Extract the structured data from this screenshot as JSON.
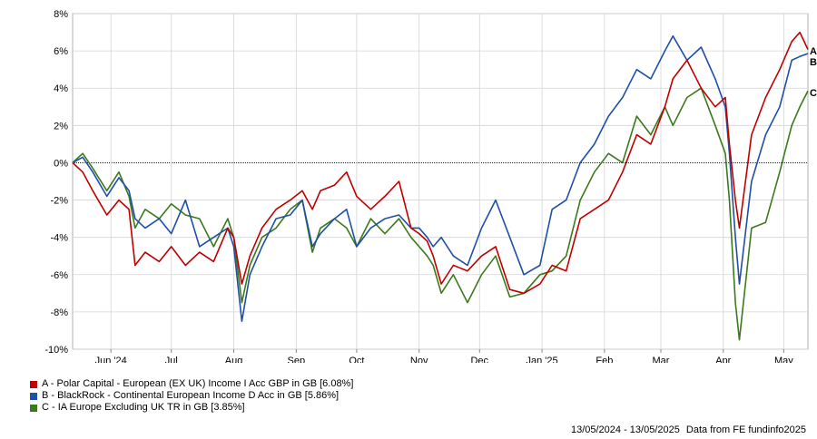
{
  "chart_data": {
    "type": "line",
    "title": "",
    "xlabel": "",
    "ylabel": "",
    "ylim": [
      -10,
      8
    ],
    "y_ticks": [
      "8%",
      "6%",
      "4%",
      "2%",
      "0%",
      "-2%",
      "-4%",
      "-6%",
      "-8%",
      "-10%"
    ],
    "x_ticks": [
      "Jun '24",
      "Jul",
      "Aug",
      "Sep",
      "Oct",
      "Nov",
      "Dec",
      "Jan '25",
      "Feb",
      "Mar",
      "Apr",
      "May"
    ],
    "x_range": [
      "2024-05-13",
      "2025-05-13"
    ],
    "grid": true,
    "zero_line": true,
    "series": [
      {
        "key": "A",
        "name": "A - Polar Capital - European (EX UK) Income I Acc GBP in GB [6.08%]",
        "color": "#c00000",
        "points": [
          [
            "2024-05-13",
            0.0
          ],
          [
            "2024-05-18",
            -0.5
          ],
          [
            "2024-05-23",
            -1.5
          ],
          [
            "2024-05-30",
            -2.8
          ],
          [
            "2024-06-05",
            -2.0
          ],
          [
            "2024-06-10",
            -2.5
          ],
          [
            "2024-06-13",
            -5.5
          ],
          [
            "2024-06-18",
            -4.8
          ],
          [
            "2024-06-25",
            -5.3
          ],
          [
            "2024-07-01",
            -4.5
          ],
          [
            "2024-07-08",
            -5.5
          ],
          [
            "2024-07-15",
            -4.8
          ],
          [
            "2024-07-22",
            -5.3
          ],
          [
            "2024-07-29",
            -3.5
          ],
          [
            "2024-08-01",
            -4.0
          ],
          [
            "2024-08-05",
            -6.5
          ],
          [
            "2024-08-09",
            -5.0
          ],
          [
            "2024-08-15",
            -3.5
          ],
          [
            "2024-08-22",
            -2.5
          ],
          [
            "2024-08-29",
            -2.0
          ],
          [
            "2024-09-04",
            -1.5
          ],
          [
            "2024-09-09",
            -2.5
          ],
          [
            "2024-09-13",
            -1.5
          ],
          [
            "2024-09-20",
            -1.2
          ],
          [
            "2024-09-26",
            -0.5
          ],
          [
            "2024-10-01",
            -1.8
          ],
          [
            "2024-10-08",
            -2.5
          ],
          [
            "2024-10-15",
            -1.8
          ],
          [
            "2024-10-22",
            -1.0
          ],
          [
            "2024-10-28",
            -3.5
          ],
          [
            "2024-11-01",
            -3.8
          ],
          [
            "2024-11-05",
            -4.2
          ],
          [
            "2024-11-08",
            -5.0
          ],
          [
            "2024-11-12",
            -6.5
          ],
          [
            "2024-11-18",
            -5.5
          ],
          [
            "2024-11-25",
            -5.8
          ],
          [
            "2024-12-02",
            -5.0
          ],
          [
            "2024-12-09",
            -4.5
          ],
          [
            "2024-12-16",
            -6.8
          ],
          [
            "2024-12-23",
            -7.0
          ],
          [
            "2024-12-31",
            -6.5
          ],
          [
            "2025-01-06",
            -5.5
          ],
          [
            "2025-01-13",
            -5.8
          ],
          [
            "2025-01-20",
            -3.0
          ],
          [
            "2025-01-27",
            -2.5
          ],
          [
            "2025-02-03",
            -2.0
          ],
          [
            "2025-02-10",
            -0.5
          ],
          [
            "2025-02-17",
            1.5
          ],
          [
            "2025-02-24",
            1.0
          ],
          [
            "2025-03-03",
            3.0
          ],
          [
            "2025-03-07",
            4.5
          ],
          [
            "2025-03-14",
            5.5
          ],
          [
            "2025-03-21",
            4.0
          ],
          [
            "2025-03-28",
            3.0
          ],
          [
            "2025-04-02",
            3.5
          ],
          [
            "2025-04-04",
            1.0
          ],
          [
            "2025-04-07",
            -2.0
          ],
          [
            "2025-04-09",
            -3.5
          ],
          [
            "2025-04-15",
            1.5
          ],
          [
            "2025-04-22",
            3.5
          ],
          [
            "2025-04-29",
            5.0
          ],
          [
            "2025-05-05",
            6.5
          ],
          [
            "2025-05-09",
            7.0
          ],
          [
            "2025-05-13",
            6.08
          ]
        ]
      },
      {
        "key": "B",
        "name": "B - BlackRock - Continental European Income D Acc in GB [5.86%]",
        "color": "#1f4fa8",
        "points": [
          [
            "2024-05-13",
            0.0
          ],
          [
            "2024-05-18",
            0.3
          ],
          [
            "2024-05-23",
            -0.5
          ],
          [
            "2024-05-30",
            -1.8
          ],
          [
            "2024-06-05",
            -0.8
          ],
          [
            "2024-06-10",
            -1.5
          ],
          [
            "2024-06-13",
            -3.0
          ],
          [
            "2024-06-18",
            -3.5
          ],
          [
            "2024-06-25",
            -3.0
          ],
          [
            "2024-07-01",
            -3.8
          ],
          [
            "2024-07-08",
            -2.0
          ],
          [
            "2024-07-15",
            -4.5
          ],
          [
            "2024-07-22",
            -4.0
          ],
          [
            "2024-07-29",
            -3.5
          ],
          [
            "2024-08-01",
            -4.5
          ],
          [
            "2024-08-05",
            -8.5
          ],
          [
            "2024-08-09",
            -6.0
          ],
          [
            "2024-08-15",
            -4.5
          ],
          [
            "2024-08-22",
            -3.0
          ],
          [
            "2024-08-29",
            -2.8
          ],
          [
            "2024-09-04",
            -2.0
          ],
          [
            "2024-09-09",
            -4.5
          ],
          [
            "2024-09-13",
            -3.8
          ],
          [
            "2024-09-20",
            -3.0
          ],
          [
            "2024-09-26",
            -2.5
          ],
          [
            "2024-10-01",
            -4.5
          ],
          [
            "2024-10-08",
            -3.5
          ],
          [
            "2024-10-15",
            -3.0
          ],
          [
            "2024-10-22",
            -2.8
          ],
          [
            "2024-10-28",
            -3.5
          ],
          [
            "2024-11-01",
            -3.5
          ],
          [
            "2024-11-05",
            -4.0
          ],
          [
            "2024-11-08",
            -4.5
          ],
          [
            "2024-11-12",
            -4.0
          ],
          [
            "2024-11-18",
            -5.0
          ],
          [
            "2024-11-25",
            -5.5
          ],
          [
            "2024-12-02",
            -3.5
          ],
          [
            "2024-12-09",
            -2.0
          ],
          [
            "2024-12-16",
            -4.0
          ],
          [
            "2024-12-23",
            -6.0
          ],
          [
            "2024-12-31",
            -5.5
          ],
          [
            "2025-01-06",
            -2.5
          ],
          [
            "2025-01-13",
            -2.0
          ],
          [
            "2025-01-20",
            0.0
          ],
          [
            "2025-01-27",
            1.0
          ],
          [
            "2025-02-03",
            2.5
          ],
          [
            "2025-02-10",
            3.5
          ],
          [
            "2025-02-17",
            5.0
          ],
          [
            "2025-02-24",
            4.5
          ],
          [
            "2025-03-03",
            6.0
          ],
          [
            "2025-03-07",
            6.8
          ],
          [
            "2025-03-14",
            5.5
          ],
          [
            "2025-03-21",
            6.2
          ],
          [
            "2025-03-28",
            4.5
          ],
          [
            "2025-04-02",
            3.0
          ],
          [
            "2025-04-04",
            0.5
          ],
          [
            "2025-04-07",
            -4.0
          ],
          [
            "2025-04-09",
            -6.5
          ],
          [
            "2025-04-15",
            -1.0
          ],
          [
            "2025-04-22",
            1.5
          ],
          [
            "2025-04-29",
            3.0
          ],
          [
            "2025-05-05",
            5.5
          ],
          [
            "2025-05-09",
            5.7
          ],
          [
            "2025-05-13",
            5.86
          ]
        ]
      },
      {
        "key": "C",
        "name": "C - IA Europe Excluding UK TR in GB [3.85%]",
        "color": "#3a7a1a",
        "points": [
          [
            "2024-05-13",
            0.0
          ],
          [
            "2024-05-18",
            0.5
          ],
          [
            "2024-05-23",
            -0.3
          ],
          [
            "2024-05-30",
            -1.5
          ],
          [
            "2024-06-05",
            -0.5
          ],
          [
            "2024-06-10",
            -1.8
          ],
          [
            "2024-06-13",
            -3.5
          ],
          [
            "2024-06-18",
            -2.5
          ],
          [
            "2024-06-25",
            -3.0
          ],
          [
            "2024-07-01",
            -2.2
          ],
          [
            "2024-07-08",
            -2.8
          ],
          [
            "2024-07-15",
            -3.0
          ],
          [
            "2024-07-22",
            -4.5
          ],
          [
            "2024-07-29",
            -3.0
          ],
          [
            "2024-08-01",
            -4.0
          ],
          [
            "2024-08-05",
            -7.5
          ],
          [
            "2024-08-09",
            -5.5
          ],
          [
            "2024-08-15",
            -4.0
          ],
          [
            "2024-08-22",
            -3.5
          ],
          [
            "2024-08-29",
            -2.5
          ],
          [
            "2024-09-04",
            -2.0
          ],
          [
            "2024-09-09",
            -4.8
          ],
          [
            "2024-09-13",
            -3.5
          ],
          [
            "2024-09-20",
            -3.0
          ],
          [
            "2024-09-26",
            -3.5
          ],
          [
            "2024-10-01",
            -4.5
          ],
          [
            "2024-10-08",
            -3.0
          ],
          [
            "2024-10-15",
            -3.8
          ],
          [
            "2024-10-22",
            -3.0
          ],
          [
            "2024-10-28",
            -4.0
          ],
          [
            "2024-11-01",
            -4.5
          ],
          [
            "2024-11-05",
            -5.0
          ],
          [
            "2024-11-08",
            -5.5
          ],
          [
            "2024-11-12",
            -7.0
          ],
          [
            "2024-11-18",
            -6.0
          ],
          [
            "2024-11-25",
            -7.5
          ],
          [
            "2024-12-02",
            -6.0
          ],
          [
            "2024-12-09",
            -5.0
          ],
          [
            "2024-12-16",
            -7.2
          ],
          [
            "2024-12-23",
            -7.0
          ],
          [
            "2024-12-31",
            -6.0
          ],
          [
            "2025-01-06",
            -5.8
          ],
          [
            "2025-01-13",
            -5.0
          ],
          [
            "2025-01-20",
            -2.0
          ],
          [
            "2025-01-27",
            -0.5
          ],
          [
            "2025-02-03",
            0.5
          ],
          [
            "2025-02-10",
            0.0
          ],
          [
            "2025-02-17",
            2.5
          ],
          [
            "2025-02-24",
            1.5
          ],
          [
            "2025-03-03",
            3.0
          ],
          [
            "2025-03-07",
            2.0
          ],
          [
            "2025-03-14",
            3.5
          ],
          [
            "2025-03-21",
            4.0
          ],
          [
            "2025-03-28",
            2.0
          ],
          [
            "2025-04-02",
            0.5
          ],
          [
            "2025-04-04",
            -2.0
          ],
          [
            "2025-04-07",
            -7.5
          ],
          [
            "2025-04-09",
            -9.5
          ],
          [
            "2025-04-15",
            -3.5
          ],
          [
            "2025-04-22",
            -3.2
          ],
          [
            "2025-04-29",
            -0.5
          ],
          [
            "2025-05-05",
            2.0
          ],
          [
            "2025-05-09",
            3.0
          ],
          [
            "2025-05-13",
            3.85
          ]
        ]
      }
    ]
  },
  "legend": [
    {
      "label": "A - Polar Capital - European (EX UK) Income I Acc GBP in GB [6.08%]",
      "color": "#c00000"
    },
    {
      "label": "B - BlackRock - Continental European Income D Acc in GB [5.86%]",
      "color": "#1f4fa8"
    },
    {
      "label": "C - IA Europe Excluding UK TR in GB [3.85%]",
      "color": "#3a7a1a"
    }
  ],
  "footer": {
    "period": "13/05/2024 - 13/05/2025",
    "source": "Data from FE fundinfo2025"
  }
}
